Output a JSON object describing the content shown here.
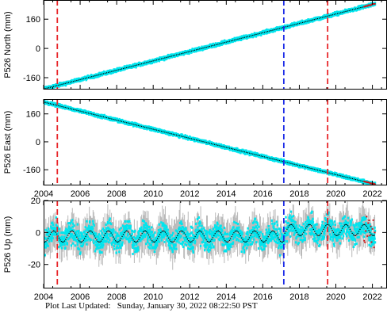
{
  "footer": {
    "label": "Plot Last Updated:",
    "value": "Sunday, January 30, 2022 08:22:50 PST"
  },
  "colors": {
    "cloud": "#00e5ee",
    "error_bars": "#b8b8b8",
    "trend": "#000000",
    "event_red": "#e8262a",
    "event_blue": "#1c2ce8",
    "recent": "#c81818"
  },
  "chart_data": [
    {
      "type": "scatter",
      "ylabel": "P526 North (mm)",
      "xlim": [
        2004.0,
        2022.8
      ],
      "ylim": [
        -225,
        265
      ],
      "yticks": [
        -160,
        0,
        160
      ],
      "xticks": [
        2004,
        2006,
        2008,
        2010,
        2012,
        2014,
        2016,
        2018,
        2020,
        2022
      ],
      "show_xtick_labels": false,
      "grid": false,
      "trend": {
        "x": [
          2004.0,
          2022.2
        ],
        "y": [
          -222,
          245
        ]
      },
      "noise_mm": 4,
      "vlines": [
        {
          "x": 2004.75,
          "color": "red",
          "style": "dashed"
        },
        {
          "x": 2017.15,
          "color": "blue",
          "style": "dashed"
        },
        {
          "x": 2019.55,
          "color": "red",
          "style": "dashed"
        }
      ]
    },
    {
      "type": "scatter",
      "ylabel": "P526 East (mm)",
      "xlim": [
        2004.0,
        2022.8
      ],
      "ylim": [
        -250,
        245
      ],
      "yticks": [
        -160,
        0,
        160
      ],
      "xticks": [
        2004,
        2006,
        2008,
        2010,
        2012,
        2014,
        2016,
        2018,
        2020,
        2022
      ],
      "xtick_labels": [
        "2004",
        "2006",
        "2008",
        "2010",
        "2012",
        "2014",
        "2016",
        "2018",
        "2020",
        "2022"
      ],
      "show_xtick_labels": true,
      "grid": false,
      "trend": {
        "x": [
          2004.0,
          2022.2
        ],
        "y": [
          228,
          -245
        ]
      },
      "noise_mm": 4,
      "vlines": [
        {
          "x": 2004.75,
          "color": "red",
          "style": "dashed"
        },
        {
          "x": 2017.15,
          "color": "blue",
          "style": "dashed"
        },
        {
          "x": 2019.55,
          "color": "red",
          "style": "dashed"
        }
      ]
    },
    {
      "type": "scatter",
      "ylabel": "P526 Up (mm)",
      "xlim": [
        2004.0,
        2022.8
      ],
      "ylim": [
        -35,
        20
      ],
      "yticks": [
        -20,
        0,
        20
      ],
      "xticks": [
        2004,
        2006,
        2008,
        2010,
        2012,
        2014,
        2016,
        2018,
        2020,
        2022
      ],
      "xtick_labels": [
        "2004",
        "2006",
        "2008",
        "2010",
        "2012",
        "2014",
        "2016",
        "2018",
        "2020",
        "2022"
      ],
      "show_xtick_labels": true,
      "grid": false,
      "seasonal": {
        "amplitude_mm": 3.5,
        "period_years": 1.0,
        "offset_before_2017": -2.5,
        "offset_after_2017": 1.5
      },
      "noise_mm": 5,
      "vlines": [
        {
          "x": 2004.75,
          "color": "red",
          "style": "dashed"
        },
        {
          "x": 2017.15,
          "color": "blue",
          "style": "dashed"
        },
        {
          "x": 2019.55,
          "color": "red",
          "style": "dashed"
        }
      ]
    }
  ]
}
